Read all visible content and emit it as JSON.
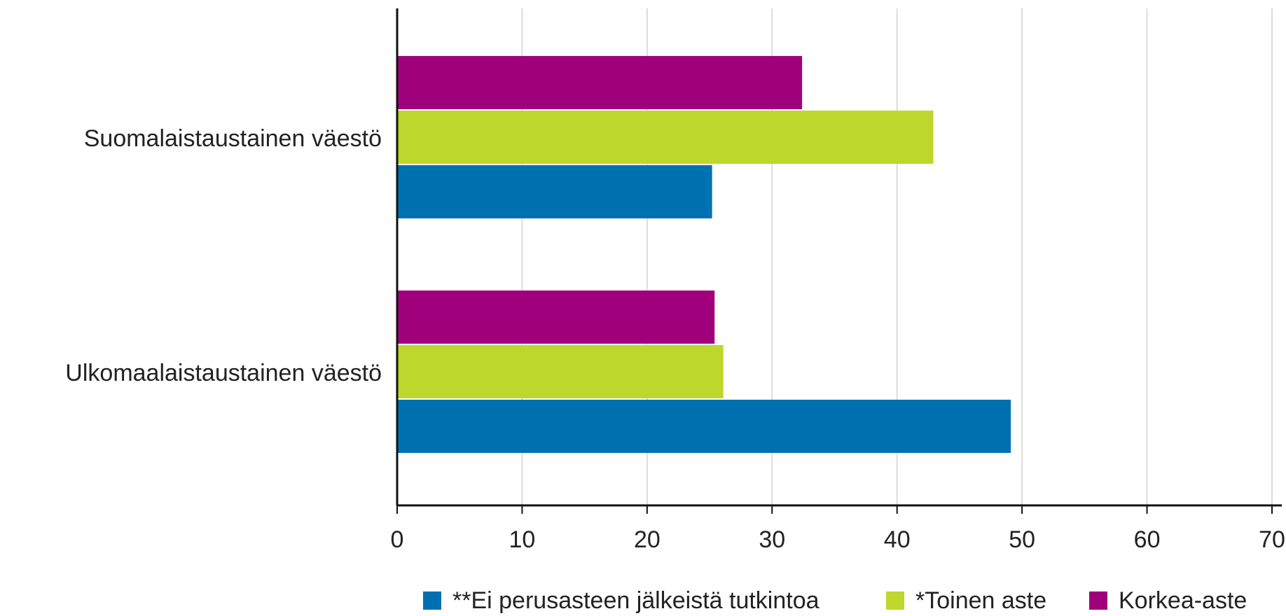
{
  "chart_data": {
    "type": "bar",
    "orientation": "horizontal",
    "categories": [
      "Suomalaistaustainen väestö",
      "Ulkomaalaistaustainen väestö"
    ],
    "series": [
      {
        "name": "**Ei perusasteen jälkeistä tutkintoa",
        "color": "#0071B0",
        "values": [
          25.2,
          49.1
        ]
      },
      {
        "name": "*Toinen aste",
        "color": "#BED72D",
        "values": [
          42.9,
          26.1
        ]
      },
      {
        "name": "Korkea-aste",
        "color": "#A1007D",
        "values": [
          32.4,
          25.4
        ]
      }
    ],
    "xlim": [
      0,
      70
    ],
    "xticks": [
      0,
      10,
      20,
      30,
      40,
      50,
      60,
      70
    ],
    "xlabel": "",
    "ylabel": "",
    "title": "",
    "grid": "vertical",
    "legend_position": "bottom"
  }
}
